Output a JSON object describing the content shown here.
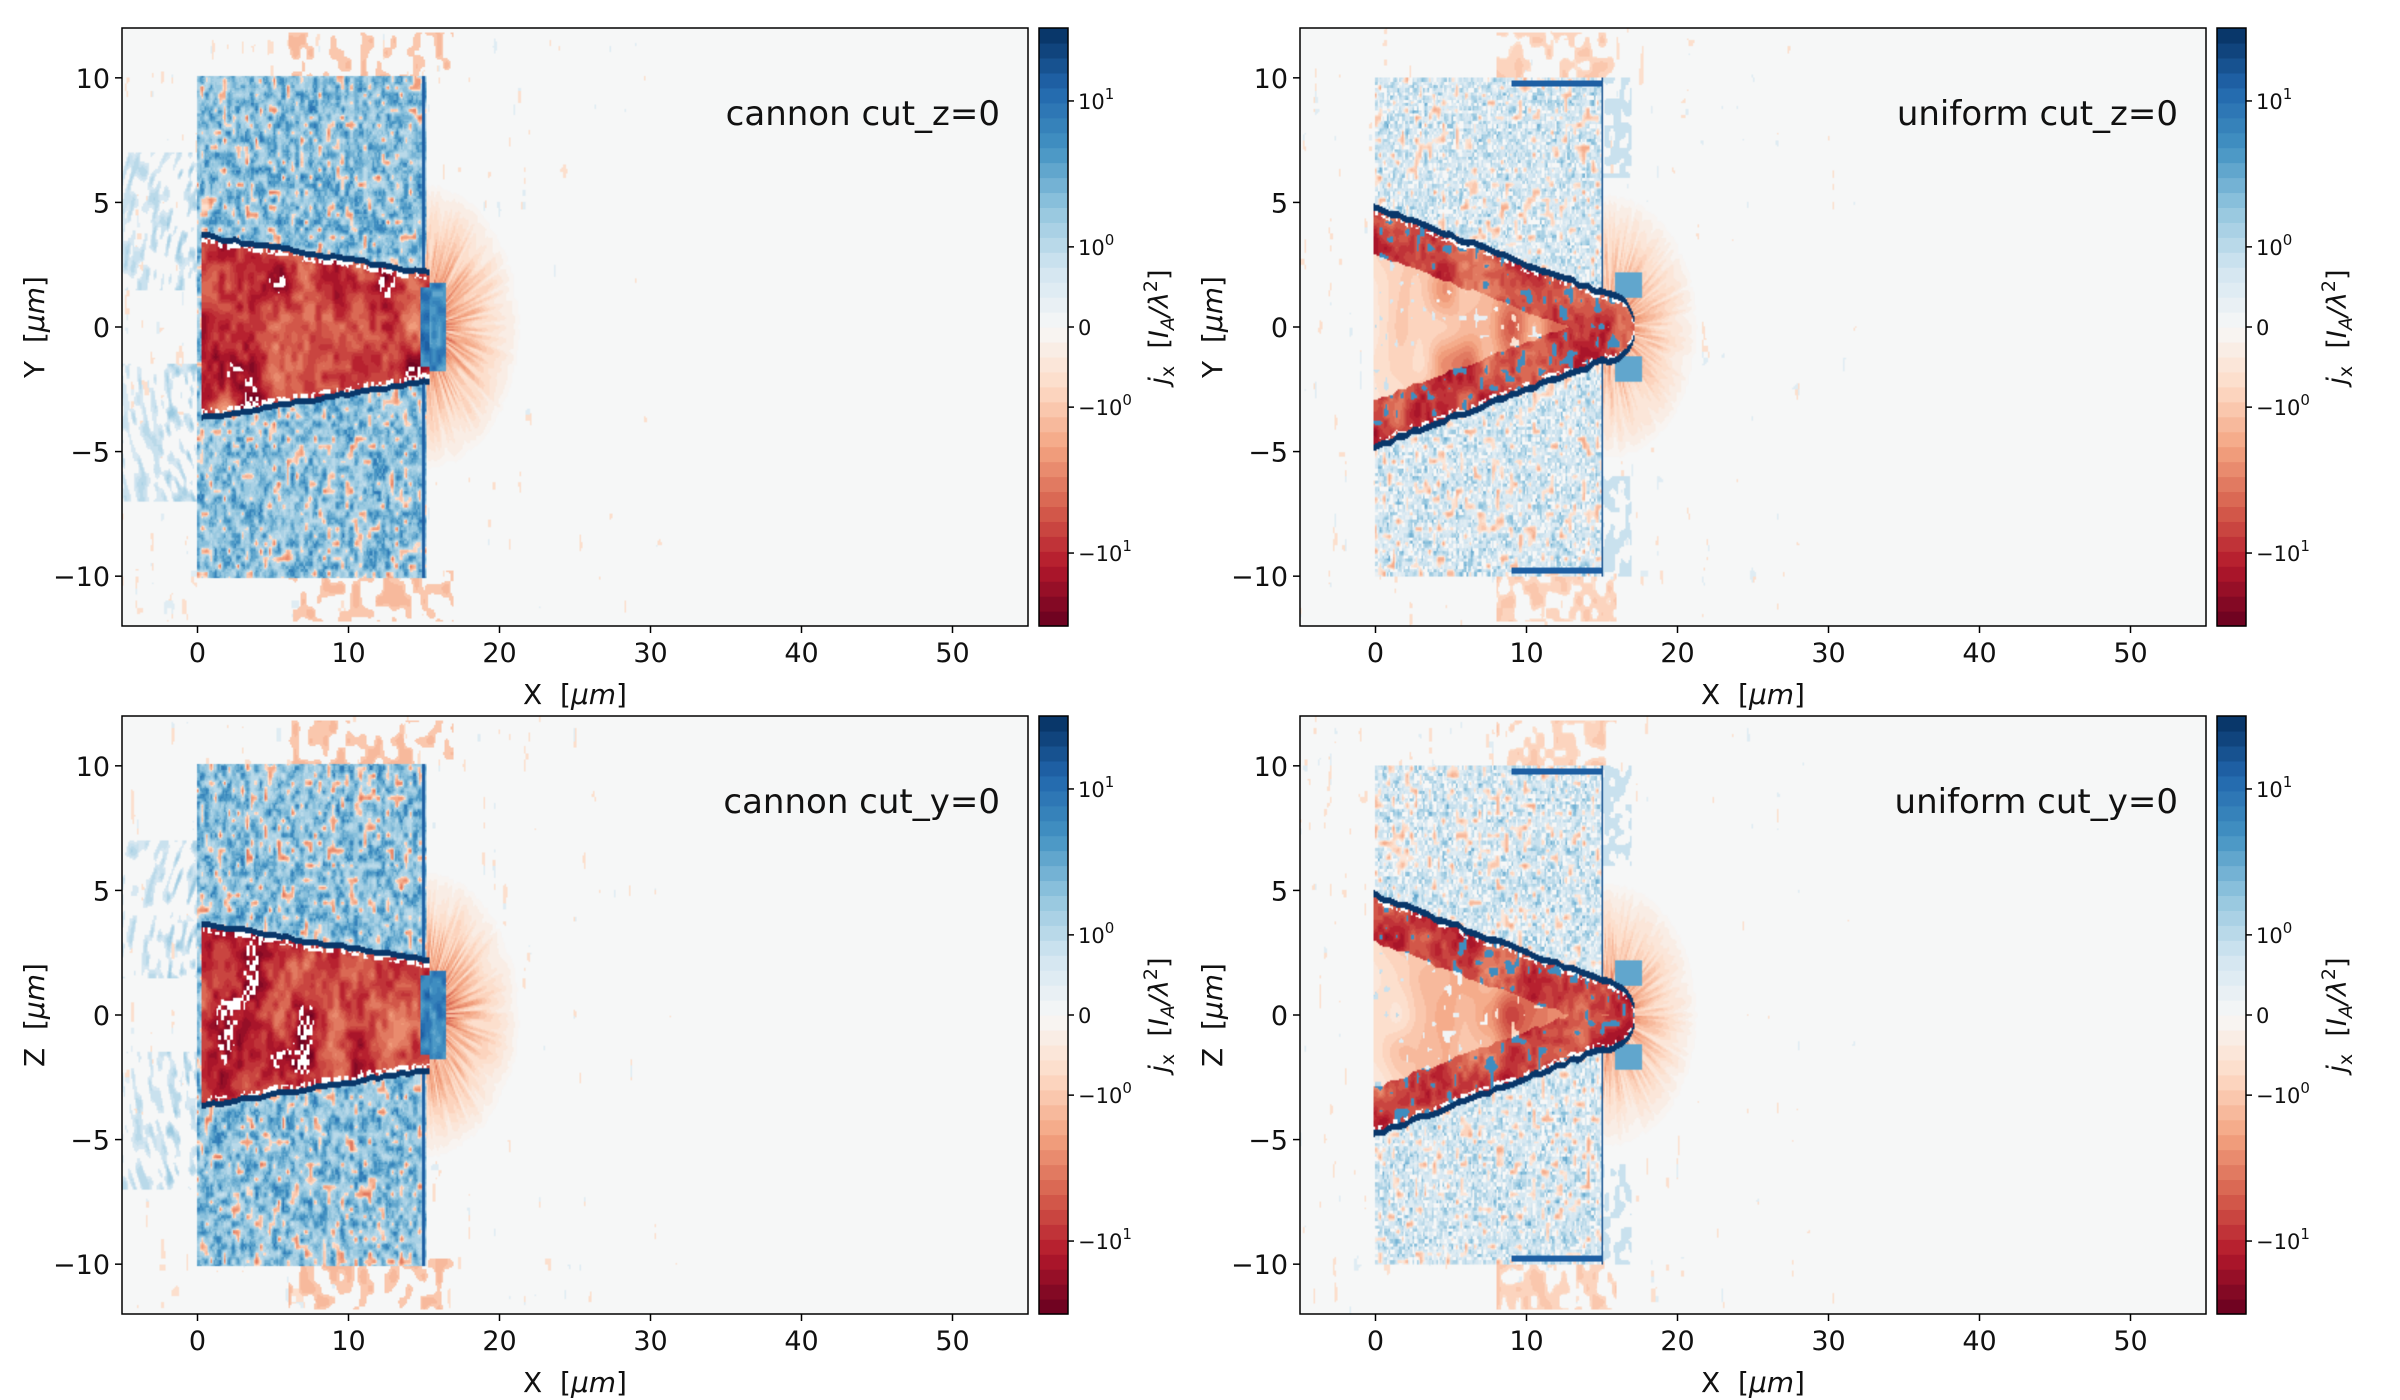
{
  "colormap": {
    "name": "RdBu",
    "stops": [
      "#67001f",
      "#b2182b",
      "#d6604d",
      "#f4a582",
      "#fddbc7",
      "#f7f7f7",
      "#d1e5f0",
      "#92c5de",
      "#4393c3",
      "#2166ac",
      "#053061"
    ],
    "levels": 40,
    "background": "#f6f7f7"
  },
  "chart_data": [
    {
      "type": "heatmap",
      "title": "cannon cut_z=0",
      "case": "cannon",
      "xlabel": {
        "var": "X",
        "unit": "μm"
      },
      "ylabel": {
        "var": "Y",
        "unit": "μm"
      },
      "xlim": [
        -5,
        55
      ],
      "ylim": [
        -12,
        12
      ],
      "xticks": [
        {
          "value": 0,
          "label": "0"
        },
        {
          "value": 10,
          "label": "10"
        },
        {
          "value": 20,
          "label": "20"
        },
        {
          "value": 30,
          "label": "30"
        },
        {
          "value": 40,
          "label": "40"
        },
        {
          "value": 50,
          "label": "50"
        }
      ],
      "yticks": [
        {
          "value": 10,
          "label": "10"
        },
        {
          "value": 5,
          "label": "5"
        },
        {
          "value": 0,
          "label": "0"
        },
        {
          "value": -5,
          "label": "−5"
        },
        {
          "value": -10,
          "label": "−10"
        }
      ],
      "colorbar": {
        "symbol": "j",
        "sub": "x",
        "unit": "I",
        "unit_sub": "A",
        "unit_rest": "/λ",
        "unit_sup": "2",
        "scale": "symlog",
        "vmin": -31.6,
        "vmax": 31.6,
        "ticks": [
          {
            "value": 10,
            "base": "10",
            "exp": "1"
          },
          {
            "value": 1,
            "base": "10",
            "exp": "0"
          },
          {
            "value": 0,
            "base": "0",
            "exp": ""
          },
          {
            "value": -1,
            "base": "−10",
            "exp": "0"
          },
          {
            "value": -10,
            "base": "−10",
            "exp": "1"
          }
        ]
      }
    },
    {
      "type": "heatmap",
      "title": "uniform cut_z=0",
      "case": "uniform",
      "xlabel": {
        "var": "X",
        "unit": "μm"
      },
      "ylabel": {
        "var": "Y",
        "unit": "μm"
      },
      "xlim": [
        -5,
        55
      ],
      "ylim": [
        -12,
        12
      ],
      "xticks": [
        {
          "value": 0,
          "label": "0"
        },
        {
          "value": 10,
          "label": "10"
        },
        {
          "value": 20,
          "label": "20"
        },
        {
          "value": 30,
          "label": "30"
        },
        {
          "value": 40,
          "label": "40"
        },
        {
          "value": 50,
          "label": "50"
        }
      ],
      "yticks": [
        {
          "value": 10,
          "label": "10"
        },
        {
          "value": 5,
          "label": "5"
        },
        {
          "value": 0,
          "label": "0"
        },
        {
          "value": -5,
          "label": "−5"
        },
        {
          "value": -10,
          "label": "−10"
        }
      ],
      "colorbar": {
        "symbol": "j",
        "sub": "x",
        "unit": "I",
        "unit_sub": "A",
        "unit_rest": "/λ",
        "unit_sup": "2",
        "scale": "symlog",
        "vmin": -31.6,
        "vmax": 31.6,
        "ticks": [
          {
            "value": 10,
            "base": "10",
            "exp": "1"
          },
          {
            "value": 1,
            "base": "10",
            "exp": "0"
          },
          {
            "value": 0,
            "base": "0",
            "exp": ""
          },
          {
            "value": -1,
            "base": "−10",
            "exp": "0"
          },
          {
            "value": -10,
            "base": "−10",
            "exp": "1"
          }
        ]
      }
    },
    {
      "type": "heatmap",
      "title": "cannon cut_y=0",
      "case": "cannon",
      "xlabel": {
        "var": "X",
        "unit": "μm"
      },
      "ylabel": {
        "var": "Z",
        "unit": "μm"
      },
      "xlim": [
        -5,
        55
      ],
      "ylim": [
        -12,
        12
      ],
      "xticks": [
        {
          "value": 0,
          "label": "0"
        },
        {
          "value": 10,
          "label": "10"
        },
        {
          "value": 20,
          "label": "20"
        },
        {
          "value": 30,
          "label": "30"
        },
        {
          "value": 40,
          "label": "40"
        },
        {
          "value": 50,
          "label": "50"
        }
      ],
      "yticks": [
        {
          "value": 10,
          "label": "10"
        },
        {
          "value": 5,
          "label": "5"
        },
        {
          "value": 0,
          "label": "0"
        },
        {
          "value": -5,
          "label": "−5"
        },
        {
          "value": -10,
          "label": "−10"
        }
      ],
      "colorbar": {
        "symbol": "j",
        "sub": "x",
        "unit": "I",
        "unit_sub": "A",
        "unit_rest": "/λ",
        "unit_sup": "2",
        "scale": "symlog",
        "vmin": -31.6,
        "vmax": 31.6,
        "ticks": [
          {
            "value": 10,
            "base": "10",
            "exp": "1"
          },
          {
            "value": 1,
            "base": "10",
            "exp": "0"
          },
          {
            "value": 0,
            "base": "0",
            "exp": ""
          },
          {
            "value": -1,
            "base": "−10",
            "exp": "0"
          },
          {
            "value": -10,
            "base": "−10",
            "exp": "1"
          }
        ]
      }
    },
    {
      "type": "heatmap",
      "title": "uniform cut_y=0",
      "case": "uniform",
      "xlabel": {
        "var": "X",
        "unit": "μm"
      },
      "ylabel": {
        "var": "Z",
        "unit": "μm"
      },
      "xlim": [
        -5,
        55
      ],
      "ylim": [
        -12,
        12
      ],
      "xticks": [
        {
          "value": 0,
          "label": "0"
        },
        {
          "value": 10,
          "label": "10"
        },
        {
          "value": 20,
          "label": "20"
        },
        {
          "value": 30,
          "label": "30"
        },
        {
          "value": 40,
          "label": "40"
        },
        {
          "value": 50,
          "label": "50"
        }
      ],
      "yticks": [
        {
          "value": 10,
          "label": "10"
        },
        {
          "value": 5,
          "label": "5"
        },
        {
          "value": 0,
          "label": "0"
        },
        {
          "value": -5,
          "label": "−5"
        },
        {
          "value": -10,
          "label": "−10"
        }
      ],
      "colorbar": {
        "symbol": "j",
        "sub": "x",
        "unit": "I",
        "unit_sub": "A",
        "unit_rest": "/λ",
        "unit_sup": "2",
        "scale": "symlog",
        "vmin": -31.6,
        "vmax": 31.6,
        "ticks": [
          {
            "value": 10,
            "base": "10",
            "exp": "1"
          },
          {
            "value": 1,
            "base": "10",
            "exp": "0"
          },
          {
            "value": 0,
            "base": "0",
            "exp": ""
          },
          {
            "value": -1,
            "base": "−10",
            "exp": "0"
          },
          {
            "value": -10,
            "base": "−10",
            "exp": "1"
          }
        ]
      }
    }
  ]
}
